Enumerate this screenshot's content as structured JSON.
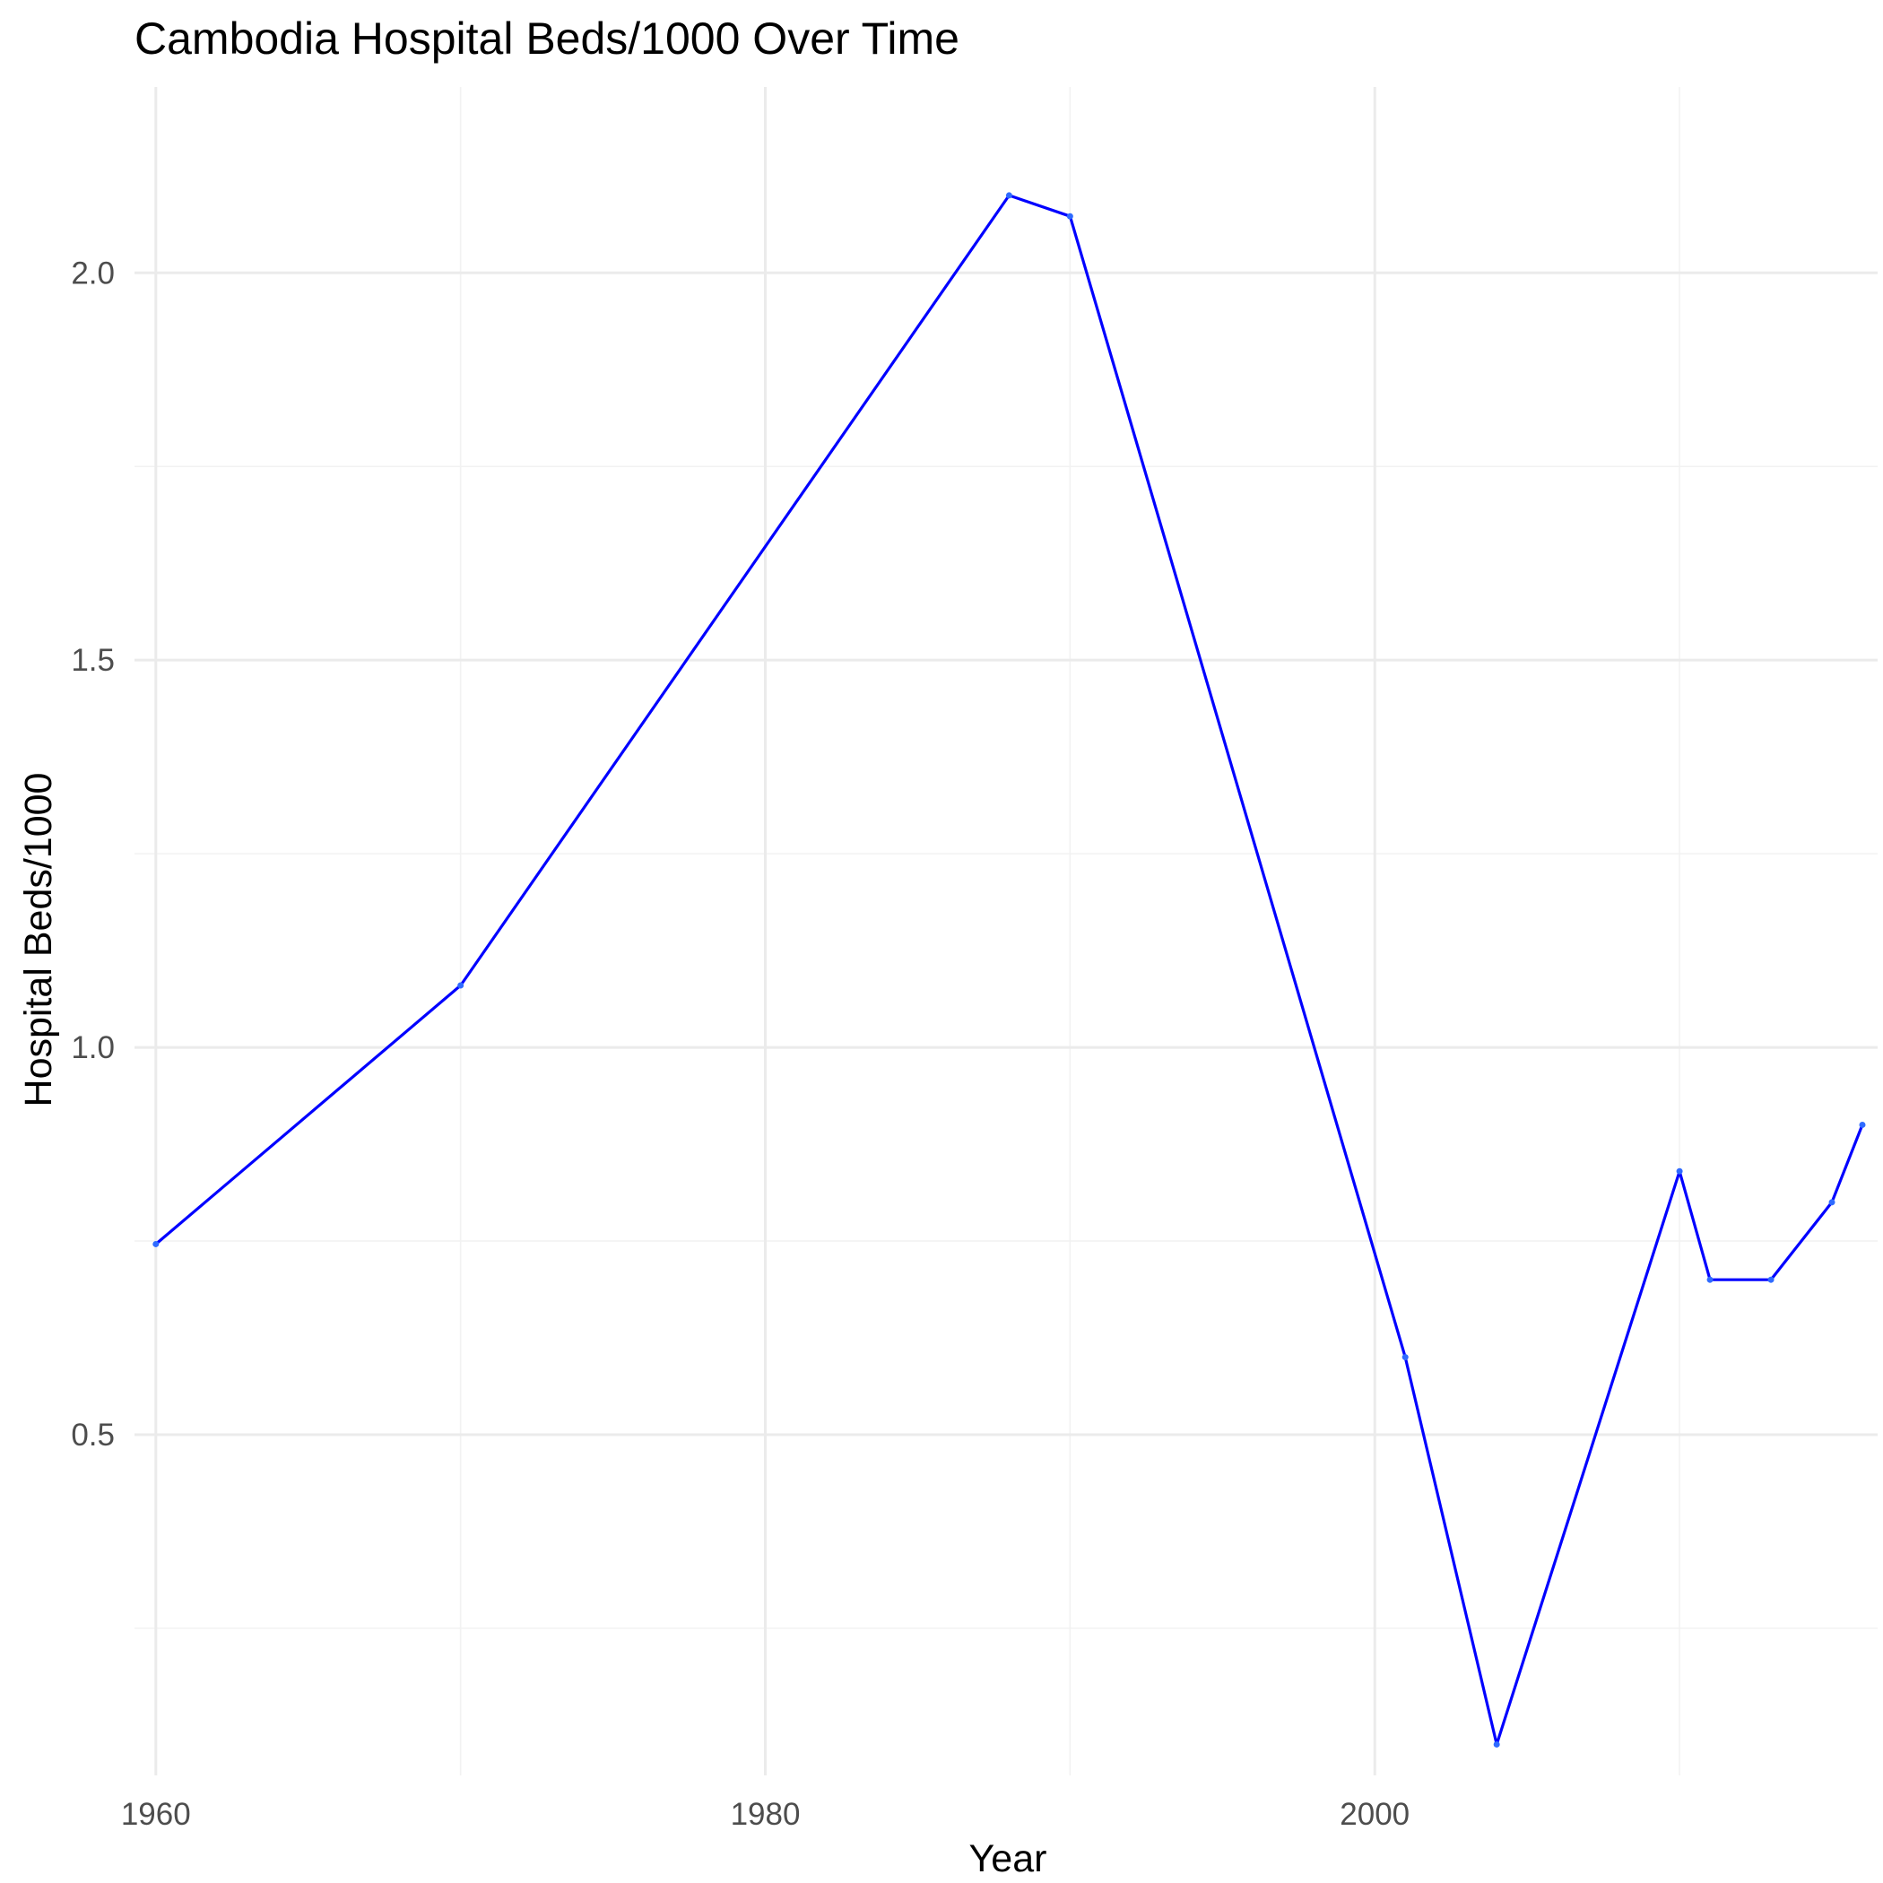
{
  "chart_data": {
    "type": "line",
    "title": "Cambodia Hospital Beds/1000 Over Time",
    "xlabel": "Year",
    "ylabel": "Hospital Beds/1000",
    "xlim": [
      1959.3,
      2016.5
    ],
    "ylim": [
      0.06,
      2.24
    ],
    "x_ticks": [
      1960,
      1980,
      2000
    ],
    "x_tick_labels": [
      "1960",
      "1980",
      "2000"
    ],
    "x_minor_ticks": [
      1970,
      1990,
      2010
    ],
    "y_ticks": [
      0.5,
      1.0,
      1.5,
      2.0
    ],
    "y_tick_labels": [
      "0.5",
      "1.0",
      "1.5",
      "2.0"
    ],
    "y_minor_ticks": [
      0.25,
      0.75,
      1.25,
      1.75
    ],
    "grid": true,
    "legend": "none",
    "series": [
      {
        "color": "#0000ff",
        "x": [
          1960,
          1970,
          1988,
          1990,
          2001,
          2004,
          2010,
          2011,
          2013,
          2015,
          2016
        ],
        "y": [
          0.746,
          1.08,
          2.1,
          2.073,
          0.6,
          0.1,
          0.84,
          0.7,
          0.7,
          0.8,
          0.9
        ]
      }
    ]
  }
}
